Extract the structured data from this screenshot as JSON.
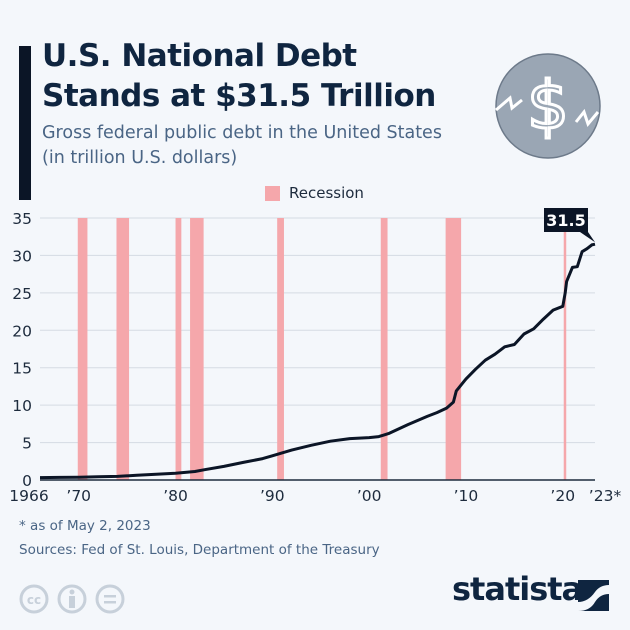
{
  "header": {
    "title_line1": "U.S. National Debt",
    "title_line2": "Stands at $31.5 Trillion",
    "subtitle_line1": "Gross federal public debt in the United States",
    "subtitle_line2": "(in trillion U.S. dollars)"
  },
  "chart_data": {
    "type": "line",
    "title": "U.S. National Debt Stands at $31.5 Trillion",
    "subtitle": "Gross federal public debt in the United States (in trillion U.S. dollars)",
    "xlim": [
      1966,
      2023.33
    ],
    "ylim": [
      0,
      35
    ],
    "yticks": [
      0,
      5,
      10,
      15,
      20,
      25,
      30,
      35
    ],
    "xticks": [
      {
        "value": 1966,
        "label": "1966"
      },
      {
        "value": 1970,
        "label": "’70"
      },
      {
        "value": 1980,
        "label": "’80"
      },
      {
        "value": 1990,
        "label": "’90"
      },
      {
        "value": 2000,
        "label": "’00"
      },
      {
        "value": 2010,
        "label": "’10"
      },
      {
        "value": 2020,
        "label": "’20"
      },
      {
        "value": 2023.33,
        "label": "’23*"
      }
    ],
    "grid": true,
    "legend": {
      "label": "Recession",
      "color": "#f5a7ab",
      "placement": "top"
    },
    "recessions": [
      [
        1969.9,
        1970.9
      ],
      [
        1973.9,
        1975.2
      ],
      [
        1980.0,
        1980.6
      ],
      [
        1981.5,
        1982.9
      ],
      [
        1990.5,
        1991.2
      ],
      [
        2001.2,
        2001.9
      ],
      [
        2007.9,
        2009.5
      ],
      [
        2020.1,
        2020.3
      ]
    ],
    "series": [
      {
        "color": "#0b1526",
        "x": [
          1966,
          1968,
          1970,
          1972,
          1974,
          1976,
          1978,
          1980,
          1982,
          1983,
          1985,
          1987,
          1989,
          1990,
          1992,
          1994,
          1996,
          1998,
          2000,
          2001,
          2002,
          2004,
          2006,
          2007,
          2008,
          2008.7,
          2009,
          2010,
          2011,
          2012,
          2013,
          2014,
          2015,
          2016,
          2017,
          2018,
          2019,
          2020,
          2020.25,
          2020.4,
          2021,
          2021.5,
          2022,
          2022.5,
          2023,
          2023.33
        ],
        "y": [
          0.32,
          0.35,
          0.38,
          0.43,
          0.48,
          0.63,
          0.78,
          0.91,
          1.14,
          1.38,
          1.82,
          2.35,
          2.86,
          3.23,
          4.0,
          4.64,
          5.18,
          5.53,
          5.67,
          5.8,
          6.2,
          7.4,
          8.5,
          9.0,
          9.6,
          10.4,
          11.9,
          13.5,
          14.8,
          16.0,
          16.8,
          17.8,
          18.1,
          19.5,
          20.2,
          21.5,
          22.7,
          23.2,
          25.0,
          26.5,
          28.4,
          28.5,
          30.5,
          30.9,
          31.4,
          31.5
        ]
      }
    ],
    "annotation": "31.5"
  },
  "footer": {
    "note": "* as of May 2, 2023",
    "sources": "Sources: Fed of St. Louis, Department of the Treasury",
    "brand": "statista"
  }
}
